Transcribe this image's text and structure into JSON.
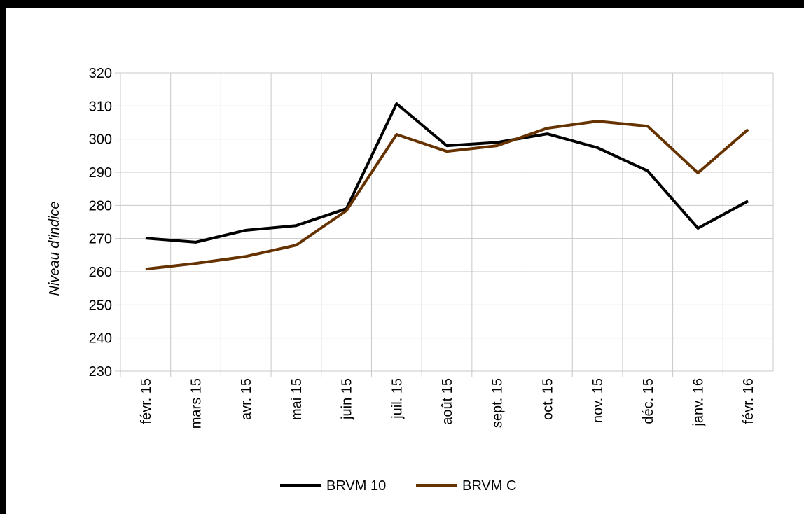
{
  "chart_data": {
    "type": "line",
    "y_label": "Niveau d'indice",
    "categories": [
      "févr. 15",
      "mars 15",
      "avr. 15",
      "mai 15",
      "juin 15",
      "juil. 15",
      "août 15",
      "sept. 15",
      "oct. 15",
      "nov. 15",
      "déc. 15",
      "janv. 16",
      "févr. 16"
    ],
    "series": [
      {
        "name": "BRVM 10",
        "color": "#000000",
        "values": [
          270.1,
          268.9,
          272.5,
          273.9,
          279,
          310.7,
          298,
          299,
          301.6,
          297.4,
          290.4,
          273.1,
          281.3
        ]
      },
      {
        "name": "BRVM C",
        "color": "#663300",
        "values": [
          260.8,
          262.5,
          264.6,
          268,
          278.4,
          301.4,
          296.3,
          298,
          303.3,
          305.4,
          303.9,
          289.8,
          302.9
        ]
      }
    ],
    "ylim": [
      230,
      320
    ],
    "yticks": [
      230,
      240,
      250,
      260,
      270,
      280,
      290,
      300,
      310,
      320
    ],
    "grid": true,
    "legend": "bottom"
  }
}
